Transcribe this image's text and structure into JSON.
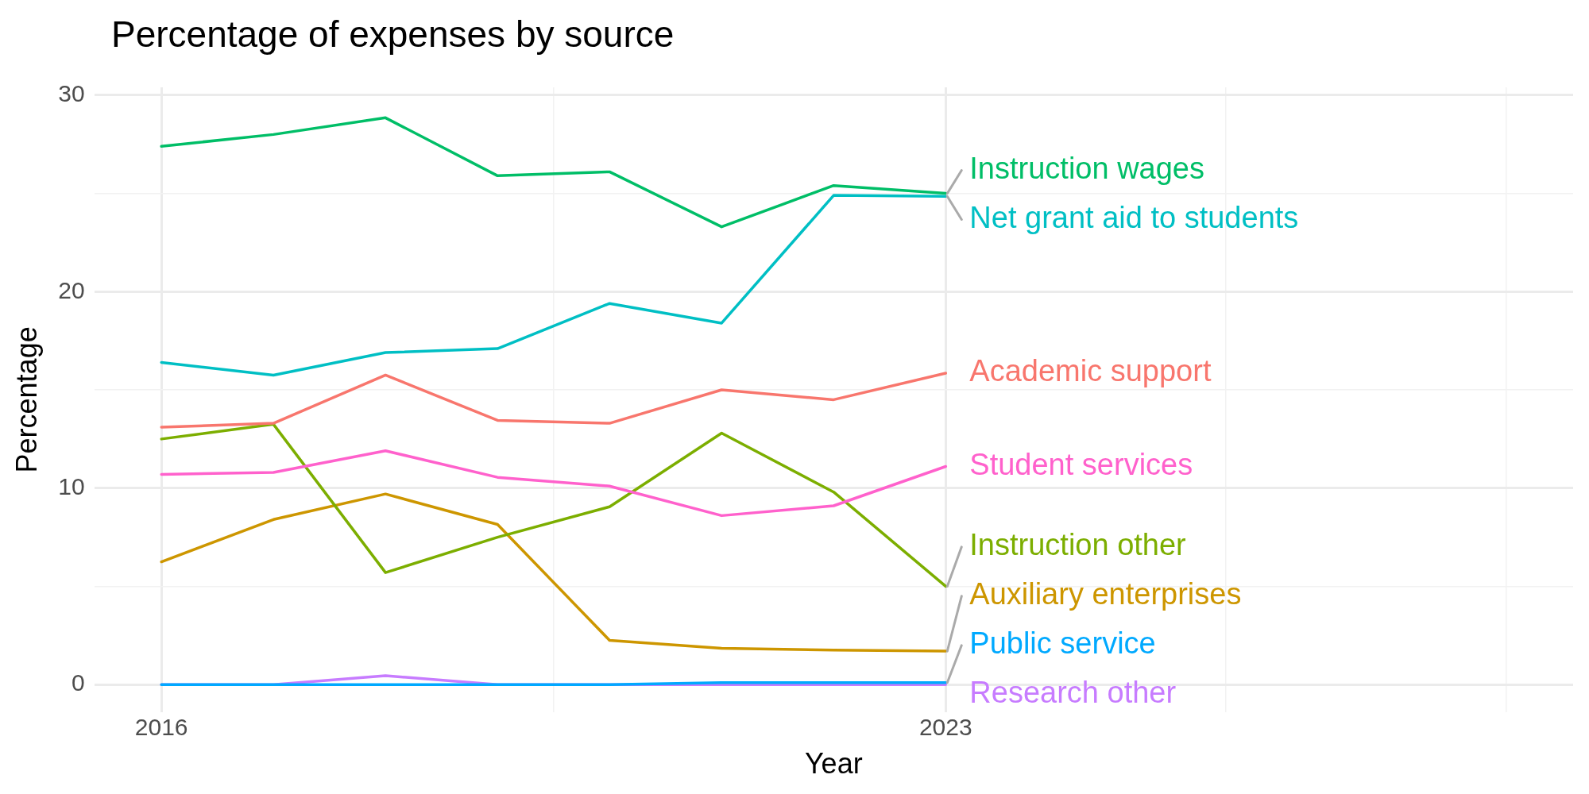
{
  "chart_data": {
    "type": "line",
    "title": "Percentage of expenses by source",
    "xlabel": "Year",
    "ylabel": "Percentage",
    "x": [
      2016,
      2017,
      2018,
      2019,
      2020,
      2021,
      2022,
      2023
    ],
    "xlim": [
      2015.4,
      2028.6
    ],
    "xticks": [
      2016,
      {
        "value": 2019.5,
        "label": null
      },
      2023,
      {
        "value": 2025.5,
        "label": null
      },
      {
        "value": 2028,
        "label": null
      }
    ],
    "ylim": [
      -1.4,
      30.4
    ],
    "yticks": [
      0,
      {
        "value": 5,
        "label": null
      },
      10,
      {
        "value": 15,
        "label": null
      },
      20,
      {
        "value": 25,
        "label": null
      },
      30
    ],
    "grid": true,
    "legend": false,
    "marker": "none",
    "line_style": "solid",
    "series": [
      {
        "name": "Instruction wages",
        "color": "#00be67",
        "values": [
          27.4,
          28.0,
          28.85,
          25.9,
          26.1,
          23.3,
          25.4,
          25.0
        ]
      },
      {
        "name": "Net grant aid to students",
        "color": "#00bfc4",
        "values": [
          16.4,
          15.75,
          16.9,
          17.1,
          19.4,
          18.4,
          24.9,
          24.85
        ]
      },
      {
        "name": "Academic support",
        "color": "#f8766d",
        "values": [
          13.1,
          13.3,
          15.75,
          13.45,
          13.3,
          15.0,
          14.5,
          15.85
        ]
      },
      {
        "name": "Student services",
        "color": "#ff61cc",
        "values": [
          10.7,
          10.8,
          11.9,
          10.55,
          10.1,
          8.6,
          9.1,
          11.1
        ]
      },
      {
        "name": "Instruction other",
        "color": "#7cae00",
        "values": [
          12.5,
          13.25,
          5.7,
          7.5,
          9.05,
          12.8,
          9.8,
          5.0
        ]
      },
      {
        "name": "Auxiliary enterprises",
        "color": "#cd9600",
        "values": [
          6.25,
          8.4,
          9.7,
          8.15,
          2.25,
          1.85,
          1.75,
          1.7
        ]
      },
      {
        "name": "Public service",
        "color": "#00a9ff",
        "values": [
          0,
          0,
          0,
          0,
          0,
          0.1,
          0.1,
          0.1
        ]
      },
      {
        "name": "Research other",
        "color": "#c77cff",
        "values": [
          0,
          0,
          0.45,
          0,
          0,
          0,
          0,
          0
        ]
      }
    ]
  }
}
